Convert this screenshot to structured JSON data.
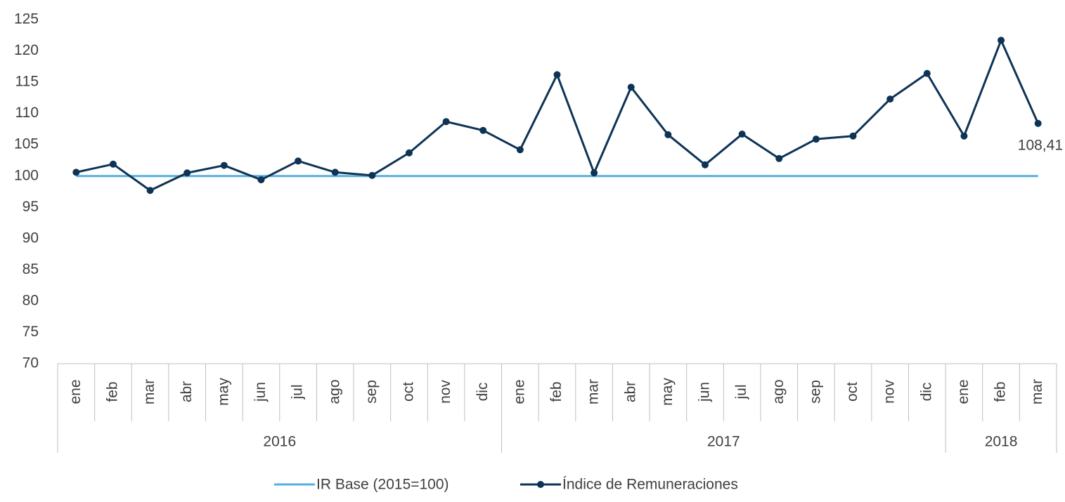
{
  "chart_data": {
    "type": "line",
    "groups": [
      {
        "label": "2016",
        "categories": [
          "ene",
          "feb",
          "mar",
          "abr",
          "may",
          "jun",
          "jul",
          "ago",
          "sep",
          "oct",
          "nov",
          "dic"
        ]
      },
      {
        "label": "2017",
        "categories": [
          "ene",
          "feb",
          "mar",
          "abr",
          "may",
          "jun",
          "jul",
          "ago",
          "sep",
          "oct",
          "nov",
          "dic"
        ]
      },
      {
        "label": "2018",
        "categories": [
          "ene",
          "feb",
          "mar"
        ]
      }
    ],
    "series": [
      {
        "name": "IR Base (2015=100)",
        "color": "#56afe0",
        "markers": false,
        "values": [
          100,
          100,
          100,
          100,
          100,
          100,
          100,
          100,
          100,
          100,
          100,
          100,
          100,
          100,
          100,
          100,
          100,
          100,
          100,
          100,
          100,
          100,
          100,
          100,
          100,
          100,
          100
        ]
      },
      {
        "name": "Índice de Remuneraciones",
        "color": "#0d3356",
        "markers": true,
        "values": [
          100.6,
          101.9,
          97.7,
          100.5,
          101.7,
          99.4,
          102.4,
          100.6,
          100.1,
          103.7,
          108.7,
          107.3,
          104.2,
          116.2,
          100.5,
          114.2,
          106.6,
          101.8,
          106.7,
          102.8,
          105.9,
          106.4,
          112.3,
          116.4,
          106.4,
          121.7,
          108.41
        ],
        "value_labels": [
          null,
          null,
          null,
          null,
          null,
          null,
          null,
          null,
          null,
          null,
          null,
          null,
          null,
          null,
          null,
          null,
          null,
          null,
          null,
          null,
          null,
          null,
          null,
          null,
          null,
          null,
          "108,41"
        ]
      }
    ],
    "ylim": [
      70,
      125
    ],
    "yticks": [
      70,
      75,
      80,
      85,
      90,
      95,
      100,
      105,
      110,
      115,
      120,
      125
    ],
    "legend": "bottom",
    "grid": false
  }
}
